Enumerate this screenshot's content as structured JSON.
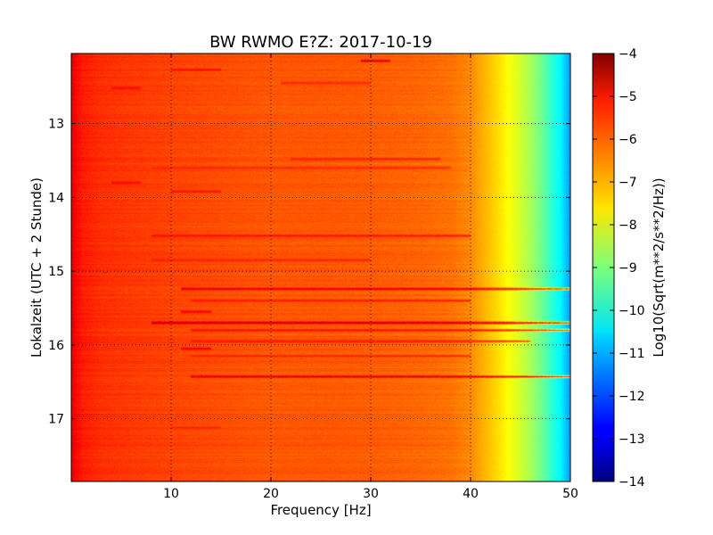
{
  "chart_data": {
    "type": "heatmap",
    "title": "BW RWMO E?Z: 2017-10-19",
    "xlabel": "Frequency [Hz]",
    "ylabel": "Lokalzeit (UTC + 2 Stunde)",
    "xlim": [
      0,
      50
    ],
    "ylim": [
      12.05,
      17.85
    ],
    "y_inverted": true,
    "grid": true,
    "x_ticks": [
      {
        "value": 10,
        "label": "10"
      },
      {
        "value": 20,
        "label": "20"
      },
      {
        "value": 30,
        "label": "30"
      },
      {
        "value": 40,
        "label": "40"
      },
      {
        "value": 50,
        "label": "50"
      }
    ],
    "y_ticks": [
      {
        "value": 13,
        "label": "13"
      },
      {
        "value": 14,
        "label": "14"
      },
      {
        "value": 15,
        "label": "15"
      },
      {
        "value": 16,
        "label": "16"
      },
      {
        "value": 17,
        "label": "17"
      }
    ],
    "colorbar": {
      "label": "Log10(Sqrt(m**2/s**2/Hz))",
      "min": -14,
      "max": -4,
      "colormap": "jet",
      "ticks": [
        {
          "value": -4,
          "label": "−4"
        },
        {
          "value": -5,
          "label": "−5"
        },
        {
          "value": -6,
          "label": "−6"
        },
        {
          "value": -7,
          "label": "−7"
        },
        {
          "value": -8,
          "label": "−8"
        },
        {
          "value": -9,
          "label": "−9"
        },
        {
          "value": -10,
          "label": "−10"
        },
        {
          "value": -11,
          "label": "−11"
        },
        {
          "value": -12,
          "label": "−12"
        },
        {
          "value": -13,
          "label": "−13"
        },
        {
          "value": -14,
          "label": "−14"
        }
      ]
    },
    "spectrum_profile": {
      "frequency_hz": [
        0,
        0.3,
        1,
        3,
        6,
        10,
        15,
        20,
        25,
        30,
        35,
        38,
        40,
        41,
        42,
        43,
        44,
        45,
        46,
        47,
        48,
        49,
        50
      ],
      "log_level": [
        -5.0,
        -5.2,
        -5.5,
        -5.7,
        -5.8,
        -5.9,
        -6.0,
        -6.1,
        -6.1,
        -6.15,
        -6.25,
        -6.35,
        -6.6,
        -6.9,
        -7.2,
        -7.5,
        -7.85,
        -8.2,
        -8.6,
        -9.1,
        -9.7,
        -10.3,
        -11.2
      ]
    },
    "bands": [
      {
        "time": 15.24,
        "fmin": 11,
        "fmax": 50,
        "level": -4.6
      },
      {
        "time": 15.7,
        "fmin": 8,
        "fmax": 50,
        "level": -4.3
      },
      {
        "time": 16.43,
        "fmin": 12,
        "fmax": 50,
        "level": -4.7
      },
      {
        "time": 12.15,
        "fmin": 29,
        "fmax": 32,
        "level": -4.6
      },
      {
        "time": 12.27,
        "fmin": 10,
        "fmax": 15,
        "level": -5.2
      },
      {
        "time": 12.52,
        "fmin": 4,
        "fmax": 7,
        "level": -5.1
      },
      {
        "time": 12.45,
        "fmin": 21,
        "fmax": 30,
        "level": -5.4
      },
      {
        "time": 13.48,
        "fmin": 22,
        "fmax": 37,
        "level": -5.4
      },
      {
        "time": 13.6,
        "fmin": 8,
        "fmax": 38,
        "level": -5.5
      },
      {
        "time": 13.8,
        "fmin": 4,
        "fmax": 7,
        "level": -5.1
      },
      {
        "time": 13.92,
        "fmin": 10,
        "fmax": 15,
        "level": -5.2
      },
      {
        "time": 14.52,
        "fmin": 8,
        "fmax": 40,
        "level": -5.2
      },
      {
        "time": 14.85,
        "fmin": 8,
        "fmax": 30,
        "level": -5.4
      },
      {
        "time": 15.4,
        "fmin": 12,
        "fmax": 40,
        "level": -5.3
      },
      {
        "time": 15.55,
        "fmin": 11,
        "fmax": 14,
        "level": -4.9
      },
      {
        "time": 15.8,
        "fmin": 12,
        "fmax": 50,
        "level": -5.1
      },
      {
        "time": 15.95,
        "fmin": 12,
        "fmax": 46,
        "level": -5.3
      },
      {
        "time": 16.05,
        "fmin": 11,
        "fmax": 14,
        "level": -4.9
      },
      {
        "time": 16.15,
        "fmin": 12,
        "fmax": 40,
        "level": -5.4
      },
      {
        "time": 17.12,
        "fmin": 10,
        "fmax": 15,
        "level": -5.5
      }
    ]
  }
}
